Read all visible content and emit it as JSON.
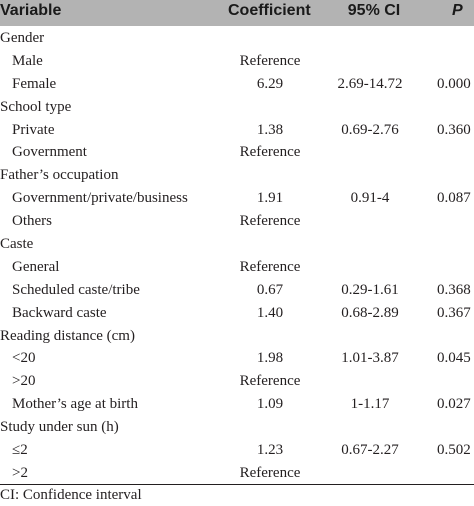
{
  "header": {
    "variable": "Variable",
    "coefficient": "Coefficient",
    "ci": "95% CI",
    "p": "P"
  },
  "rows": [
    {
      "label": "Gender",
      "coef": "",
      "ci": "",
      "p": "",
      "indent": false
    },
    {
      "label": "Male",
      "coef": "Reference",
      "ci": "",
      "p": "",
      "indent": true
    },
    {
      "label": "Female",
      "coef": "6.29",
      "ci": "2.69-14.72",
      "p": "0.000",
      "indent": true
    },
    {
      "label": "School type",
      "coef": "",
      "ci": "",
      "p": "",
      "indent": false
    },
    {
      "label": "Private",
      "coef": "1.38",
      "ci": "0.69-2.76",
      "p": "0.360",
      "indent": true
    },
    {
      "label": "Government",
      "coef": "Reference",
      "ci": "",
      "p": "",
      "indent": true
    },
    {
      "label": "Father’s occupation",
      "coef": "",
      "ci": "",
      "p": "",
      "indent": false
    },
    {
      "label": "Government/private/business",
      "coef": "1.91",
      "ci": "0.91-4",
      "p": "0.087",
      "indent": true
    },
    {
      "label": "Others",
      "coef": "Reference",
      "ci": "",
      "p": "",
      "indent": true
    },
    {
      "label": "Caste",
      "coef": "",
      "ci": "",
      "p": "",
      "indent": false
    },
    {
      "label": "General",
      "coef": "Reference",
      "ci": "",
      "p": "",
      "indent": true
    },
    {
      "label": "Scheduled caste/tribe",
      "coef": "0.67",
      "ci": "0.29-1.61",
      "p": "0.368",
      "indent": true
    },
    {
      "label": "Backward caste",
      "coef": "1.40",
      "ci": "0.68-2.89",
      "p": "0.367",
      "indent": true
    },
    {
      "label": "Reading distance (cm)",
      "coef": "",
      "ci": "",
      "p": "",
      "indent": false
    },
    {
      "label": "<20",
      "coef": "1.98",
      "ci": "1.01-3.87",
      "p": "0.045",
      "indent": true
    },
    {
      "label": ">20",
      "coef": "Reference",
      "ci": "",
      "p": "",
      "indent": true
    },
    {
      "label": "Mother’s age at birth",
      "coef": "1.09",
      "ci": "1-1.17",
      "p": "0.027",
      "indent": true
    },
    {
      "label": "Study under sun (h)",
      "coef": "",
      "ci": "",
      "p": "",
      "indent": false
    },
    {
      "label": "≤2",
      "coef": "1.23",
      "ci": "0.67-2.27",
      "p": "0.502",
      "indent": true
    },
    {
      "label": ">2",
      "coef": "Reference",
      "ci": "",
      "p": "",
      "indent": true
    }
  ],
  "footnote": "CI: Confidence interval"
}
